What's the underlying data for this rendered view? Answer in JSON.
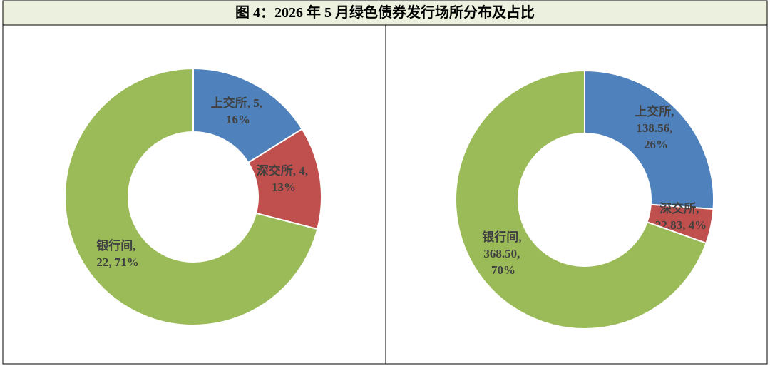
{
  "title": "图 4：2026 年 5 月绿色债券发行场所分布及占比",
  "chart_data": [
    {
      "type": "donut",
      "categories": [
        "上交所",
        "深交所",
        "银行间"
      ],
      "values": [
        5,
        4,
        22
      ],
      "value_labels": [
        "5",
        "4",
        "22"
      ],
      "percent_labels": [
        "16%",
        "13%",
        "71%"
      ],
      "label_separator": ", ",
      "colors": [
        "#4f81bd",
        "#c0504d",
        "#9bbb59"
      ]
    },
    {
      "type": "donut",
      "categories": [
        "上交所",
        "深交所",
        "银行间"
      ],
      "values": [
        138.56,
        22.83,
        368.5
      ],
      "value_labels": [
        "138.56",
        "22.83",
        "368.50"
      ],
      "percent_labels": [
        "26%",
        "4%",
        "70%"
      ],
      "label_separator": ", ",
      "colors": [
        "#4f81bd",
        "#c0504d",
        "#9bbb59"
      ]
    }
  ]
}
